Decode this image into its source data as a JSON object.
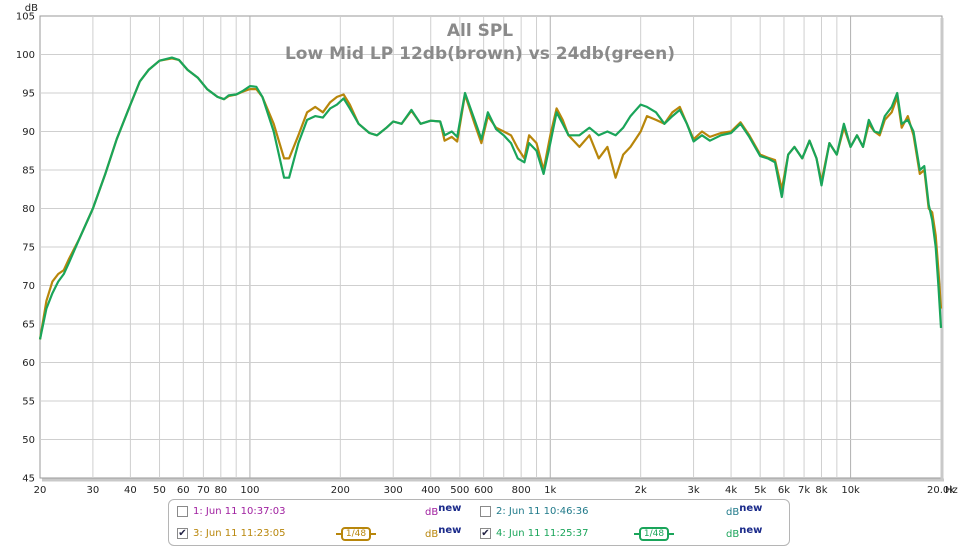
{
  "chart_data": {
    "type": "line",
    "title": "All SPL",
    "subtitle": "Low Mid LP 12db(brown) vs 24db(green)",
    "ylabel": "dB",
    "xlabel": "Hz",
    "x_scale": "log",
    "xlim": [
      20,
      20000
    ],
    "ylim": [
      45,
      105
    ],
    "yticks": [
      45,
      50,
      55,
      60,
      65,
      70,
      75,
      80,
      85,
      90,
      95,
      100,
      105
    ],
    "xticks": [
      {
        "v": 20,
        "label": "20"
      },
      {
        "v": 30,
        "label": "30"
      },
      {
        "v": 40,
        "label": "40"
      },
      {
        "v": 50,
        "label": "50"
      },
      {
        "v": 60,
        "label": "60"
      },
      {
        "v": 70,
        "label": "70"
      },
      {
        "v": 80,
        "label": "80"
      },
      {
        "v": 100,
        "label": "100"
      },
      {
        "v": 200,
        "label": "200"
      },
      {
        "v": 300,
        "label": "300"
      },
      {
        "v": 400,
        "label": "400"
      },
      {
        "v": 500,
        "label": "500"
      },
      {
        "v": 600,
        "label": "600"
      },
      {
        "v": 800,
        "label": "800"
      },
      {
        "v": 1000,
        "label": "1k"
      },
      {
        "v": 2000,
        "label": "2k"
      },
      {
        "v": 3000,
        "label": "3k"
      },
      {
        "v": 4000,
        "label": "4k"
      },
      {
        "v": 5000,
        "label": "5k"
      },
      {
        "v": 6000,
        "label": "6k"
      },
      {
        "v": 7000,
        "label": "7k"
      },
      {
        "v": 8000,
        "label": "8k"
      },
      {
        "v": 10000,
        "label": "10k"
      },
      {
        "v": 20000,
        "label": "20.0k"
      }
    ],
    "grid": true,
    "series": [
      {
        "color": "#b8860b",
        "points": [
          [
            20,
            63
          ],
          [
            21,
            68
          ],
          [
            22,
            70.5
          ],
          [
            23,
            71.5
          ],
          [
            24,
            72
          ],
          [
            25,
            73.5
          ],
          [
            27,
            76
          ],
          [
            30,
            80
          ],
          [
            33,
            84.5
          ],
          [
            36,
            89
          ],
          [
            40,
            93.5
          ],
          [
            43,
            96.5
          ],
          [
            46,
            98
          ],
          [
            50,
            99.2
          ],
          [
            55,
            99.5
          ],
          [
            58,
            99.3
          ],
          [
            62,
            98
          ],
          [
            67,
            97
          ],
          [
            72,
            95.5
          ],
          [
            78,
            94.5
          ],
          [
            82,
            94.2
          ],
          [
            85,
            94.6
          ],
          [
            90,
            94.8
          ],
          [
            95,
            95.2
          ],
          [
            100,
            95.5
          ],
          [
            105,
            95.5
          ],
          [
            110,
            94.5
          ],
          [
            120,
            91
          ],
          [
            130,
            86.5
          ],
          [
            135,
            86.5
          ],
          [
            145,
            89.5
          ],
          [
            155,
            92.5
          ],
          [
            165,
            93.2
          ],
          [
            175,
            92.5
          ],
          [
            185,
            93.8
          ],
          [
            195,
            94.5
          ],
          [
            205,
            94.8
          ],
          [
            215,
            93.5
          ],
          [
            230,
            91
          ],
          [
            250,
            89.8
          ],
          [
            265,
            89.5
          ],
          [
            285,
            90.5
          ],
          [
            300,
            91.3
          ],
          [
            320,
            91
          ],
          [
            345,
            92.7
          ],
          [
            370,
            91
          ],
          [
            400,
            91.4
          ],
          [
            430,
            91.3
          ],
          [
            445,
            88.8
          ],
          [
            470,
            89.3
          ],
          [
            490,
            88.7
          ],
          [
            520,
            94.8
          ],
          [
            560,
            91
          ],
          [
            590,
            88.5
          ],
          [
            620,
            92
          ],
          [
            660,
            90.5
          ],
          [
            700,
            90
          ],
          [
            740,
            89.5
          ],
          [
            780,
            87.8
          ],
          [
            820,
            86.5
          ],
          [
            850,
            89.5
          ],
          [
            900,
            88.5
          ],
          [
            950,
            85
          ],
          [
            1000,
            89.5
          ],
          [
            1050,
            93
          ],
          [
            1100,
            91.5
          ],
          [
            1150,
            89.5
          ],
          [
            1250,
            88
          ],
          [
            1350,
            89.5
          ],
          [
            1450,
            86.5
          ],
          [
            1550,
            88
          ],
          [
            1650,
            84
          ],
          [
            1750,
            87
          ],
          [
            1850,
            88
          ],
          [
            2000,
            90
          ],
          [
            2100,
            92
          ],
          [
            2250,
            91.5
          ],
          [
            2400,
            91
          ],
          [
            2550,
            92.5
          ],
          [
            2700,
            93.2
          ],
          [
            2850,
            91
          ],
          [
            3000,
            89
          ],
          [
            3200,
            90
          ],
          [
            3400,
            89.3
          ],
          [
            3700,
            89.8
          ],
          [
            4000,
            90
          ],
          [
            4300,
            91.2
          ],
          [
            4600,
            89.5
          ],
          [
            5000,
            87
          ],
          [
            5300,
            86.6
          ],
          [
            5600,
            86.3
          ],
          [
            5900,
            82.5
          ],
          [
            6200,
            87
          ],
          [
            6500,
            88
          ],
          [
            6900,
            86.5
          ],
          [
            7300,
            88.8
          ],
          [
            7700,
            86.5
          ],
          [
            8000,
            83.5
          ],
          [
            8500,
            88.5
          ],
          [
            9000,
            87
          ],
          [
            9500,
            90.5
          ],
          [
            10000,
            88
          ],
          [
            10500,
            89.5
          ],
          [
            11000,
            88
          ],
          [
            11500,
            91
          ],
          [
            12000,
            90
          ],
          [
            12500,
            89.5
          ],
          [
            13000,
            91.5
          ],
          [
            13700,
            92.5
          ],
          [
            14300,
            94.5
          ],
          [
            14800,
            90.5
          ],
          [
            15500,
            92
          ],
          [
            16200,
            89.5
          ],
          [
            17000,
            84.5
          ],
          [
            17600,
            85
          ],
          [
            18200,
            80
          ],
          [
            18700,
            79.5
          ],
          [
            19200,
            76.5
          ],
          [
            19600,
            72
          ],
          [
            20000,
            67
          ]
        ]
      },
      {
        "color": "#1aa55a",
        "points": [
          [
            20,
            63
          ],
          [
            21,
            67
          ],
          [
            22,
            69
          ],
          [
            23,
            70.5
          ],
          [
            24,
            71.5
          ],
          [
            25,
            73
          ],
          [
            27,
            76
          ],
          [
            30,
            80
          ],
          [
            33,
            84.5
          ],
          [
            36,
            89
          ],
          [
            40,
            93.5
          ],
          [
            43,
            96.5
          ],
          [
            46,
            98
          ],
          [
            50,
            99.2
          ],
          [
            55,
            99.6
          ],
          [
            58,
            99.3
          ],
          [
            62,
            98
          ],
          [
            67,
            97
          ],
          [
            72,
            95.5
          ],
          [
            78,
            94.5
          ],
          [
            82,
            94.2
          ],
          [
            85,
            94.7
          ],
          [
            90,
            94.8
          ],
          [
            95,
            95.3
          ],
          [
            100,
            95.9
          ],
          [
            105,
            95.8
          ],
          [
            110,
            94.5
          ],
          [
            120,
            90
          ],
          [
            130,
            84
          ],
          [
            135,
            84
          ],
          [
            145,
            88.5
          ],
          [
            155,
            91.5
          ],
          [
            165,
            92
          ],
          [
            175,
            91.8
          ],
          [
            185,
            93
          ],
          [
            195,
            93.5
          ],
          [
            205,
            94.3
          ],
          [
            215,
            93
          ],
          [
            230,
            91
          ],
          [
            250,
            89.8
          ],
          [
            265,
            89.5
          ],
          [
            285,
            90.5
          ],
          [
            300,
            91.3
          ],
          [
            320,
            91
          ],
          [
            345,
            92.8
          ],
          [
            370,
            91
          ],
          [
            400,
            91.4
          ],
          [
            430,
            91.3
          ],
          [
            445,
            89.5
          ],
          [
            470,
            90
          ],
          [
            490,
            89.3
          ],
          [
            520,
            95
          ],
          [
            560,
            91.5
          ],
          [
            590,
            89
          ],
          [
            620,
            92.5
          ],
          [
            660,
            90.3
          ],
          [
            700,
            89.5
          ],
          [
            740,
            88.5
          ],
          [
            780,
            86.5
          ],
          [
            820,
            86
          ],
          [
            850,
            88.5
          ],
          [
            900,
            87.5
          ],
          [
            950,
            84.5
          ],
          [
            1000,
            88.5
          ],
          [
            1050,
            92.5
          ],
          [
            1100,
            91
          ],
          [
            1150,
            89.5
          ],
          [
            1250,
            89.5
          ],
          [
            1350,
            90.5
          ],
          [
            1450,
            89.5
          ],
          [
            1550,
            90
          ],
          [
            1650,
            89.5
          ],
          [
            1750,
            90.5
          ],
          [
            1850,
            92
          ],
          [
            2000,
            93.5
          ],
          [
            2100,
            93.2
          ],
          [
            2250,
            92.5
          ],
          [
            2400,
            91
          ],
          [
            2550,
            92
          ],
          [
            2700,
            92.8
          ],
          [
            2850,
            91
          ],
          [
            3000,
            88.7
          ],
          [
            3200,
            89.5
          ],
          [
            3400,
            88.8
          ],
          [
            3700,
            89.5
          ],
          [
            4000,
            89.8
          ],
          [
            4300,
            91
          ],
          [
            4600,
            89.3
          ],
          [
            5000,
            86.8
          ],
          [
            5300,
            86.5
          ],
          [
            5600,
            86
          ],
          [
            5900,
            81.5
          ],
          [
            6200,
            87
          ],
          [
            6500,
            88
          ],
          [
            6900,
            86.5
          ],
          [
            7300,
            88.8
          ],
          [
            7700,
            86.5
          ],
          [
            8000,
            83
          ],
          [
            8500,
            88.5
          ],
          [
            9000,
            87
          ],
          [
            9500,
            91
          ],
          [
            10000,
            88
          ],
          [
            10500,
            89.5
          ],
          [
            11000,
            88
          ],
          [
            11500,
            91.5
          ],
          [
            12000,
            90
          ],
          [
            12500,
            89.8
          ],
          [
            13000,
            92
          ],
          [
            13700,
            93.2
          ],
          [
            14300,
            95
          ],
          [
            14800,
            91
          ],
          [
            15500,
            91.5
          ],
          [
            16200,
            90
          ],
          [
            17000,
            85
          ],
          [
            17600,
            85.5
          ],
          [
            18200,
            80.5
          ],
          [
            18700,
            78.5
          ],
          [
            19200,
            75
          ],
          [
            19600,
            70
          ],
          [
            20000,
            64.5
          ]
        ]
      }
    ]
  },
  "legend": {
    "rows": [
      [
        {
          "label": "1: Jun 11 10:37:03",
          "checked": false,
          "color": "#a020a0",
          "db": "dB",
          "dbsup": "new",
          "dbcolor": "#a020a0"
        },
        {
          "label": "2: Jun 11 10:46:36",
          "checked": false,
          "color": "#207a8a",
          "db": "dB",
          "dbsup": "new",
          "dbcolor": "#207a8a"
        }
      ],
      [
        {
          "label": "3: Jun 11 11:23:05",
          "checked": true,
          "color": "#b8860b",
          "db": "dB",
          "dbsup": "new",
          "dbcolor": "#b8860b",
          "smoothing": "1/48"
        },
        {
          "label": "4: Jun 11 11:25:37",
          "checked": true,
          "color": "#1aa55a",
          "db": "dB",
          "dbsup": "new",
          "dbcolor": "#1aa55a",
          "smoothing": "1/48"
        }
      ]
    ]
  }
}
